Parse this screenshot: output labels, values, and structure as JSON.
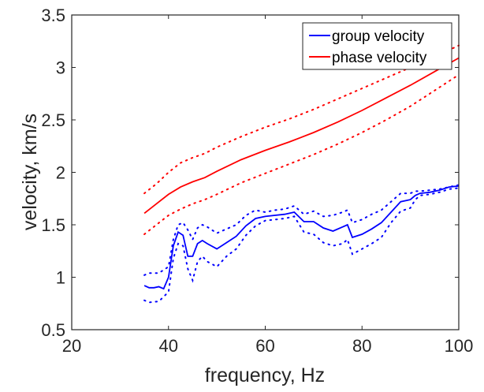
{
  "chart_data": {
    "type": "line",
    "xlabel": "frequency, Hz",
    "ylabel": "velocity, km/s",
    "xlim": [
      20,
      100
    ],
    "ylim": [
      0.5,
      3.5
    ],
    "xticks": [
      20,
      40,
      60,
      80,
      100
    ],
    "yticks": [
      0.5,
      1,
      1.5,
      2,
      2.5,
      3,
      3.5
    ],
    "xtick_labels": [
      "20",
      "40",
      "60",
      "80",
      "100"
    ],
    "ytick_labels": [
      "0.5",
      "1",
      "1.5",
      "2",
      "2.5",
      "3",
      "3.5"
    ],
    "grid": false,
    "legend_position": "top-right",
    "series": [
      {
        "name": "group velocity",
        "color": "#0000ff",
        "style": "solid",
        "x": [
          35,
          36,
          37,
          38,
          39,
          40,
          41,
          42,
          43,
          44,
          45,
          46,
          47,
          48,
          50,
          52,
          54,
          56,
          58,
          60,
          62,
          64,
          66,
          68,
          70,
          72,
          74,
          76,
          77,
          78,
          80,
          82,
          84,
          86,
          88,
          90,
          91,
          92,
          94,
          96,
          98,
          100
        ],
        "y": [
          0.92,
          0.9,
          0.9,
          0.91,
          0.89,
          1.0,
          1.3,
          1.43,
          1.4,
          1.2,
          1.2,
          1.32,
          1.35,
          1.32,
          1.27,
          1.33,
          1.39,
          1.49,
          1.56,
          1.58,
          1.59,
          1.6,
          1.62,
          1.53,
          1.53,
          1.47,
          1.44,
          1.48,
          1.5,
          1.38,
          1.41,
          1.46,
          1.52,
          1.62,
          1.72,
          1.74,
          1.78,
          1.8,
          1.81,
          1.83,
          1.86,
          1.87
        ]
      },
      {
        "name": "group velocity upper bound",
        "color": "#0000ff",
        "style": "dotted",
        "x": [
          35,
          36,
          38,
          40,
          41,
          42,
          43,
          44,
          45,
          46,
          47,
          48,
          50,
          52,
          54,
          56,
          58,
          60,
          62,
          64,
          66,
          68,
          70,
          72,
          74,
          76,
          77,
          78,
          80,
          82,
          84,
          86,
          88,
          90,
          91,
          92,
          94,
          96,
          98,
          100
        ],
        "y": [
          1.02,
          1.04,
          1.04,
          1.1,
          1.36,
          1.5,
          1.52,
          1.45,
          1.36,
          1.47,
          1.5,
          1.48,
          1.42,
          1.46,
          1.5,
          1.59,
          1.64,
          1.62,
          1.64,
          1.65,
          1.68,
          1.6,
          1.63,
          1.58,
          1.59,
          1.62,
          1.64,
          1.52,
          1.55,
          1.6,
          1.64,
          1.72,
          1.8,
          1.8,
          1.82,
          1.82,
          1.83,
          1.84,
          1.86,
          1.88
        ]
      },
      {
        "name": "group velocity lower bound",
        "color": "#0000ff",
        "style": "dotted",
        "x": [
          35,
          36,
          38,
          40,
          41,
          42,
          43,
          44,
          45,
          46,
          47,
          48,
          50,
          52,
          54,
          56,
          58,
          60,
          62,
          64,
          66,
          68,
          70,
          72,
          74,
          76,
          77,
          78,
          80,
          82,
          84,
          86,
          88,
          90,
          91,
          92,
          94,
          96,
          98,
          100
        ],
        "y": [
          0.78,
          0.76,
          0.77,
          0.86,
          1.18,
          1.32,
          1.3,
          1.08,
          0.97,
          1.15,
          1.2,
          1.15,
          1.1,
          1.2,
          1.27,
          1.4,
          1.49,
          1.54,
          1.55,
          1.56,
          1.58,
          1.43,
          1.41,
          1.33,
          1.3,
          1.32,
          1.36,
          1.22,
          1.27,
          1.32,
          1.38,
          1.52,
          1.63,
          1.66,
          1.74,
          1.78,
          1.79,
          1.81,
          1.84,
          1.85
        ]
      },
      {
        "name": "phase velocity",
        "color": "#ff0000",
        "style": "solid",
        "x": [
          35,
          37.5,
          40,
          42.5,
          45,
          47.5,
          50,
          55,
          60,
          65,
          70,
          75,
          80,
          85,
          90,
          95,
          100
        ],
        "y": [
          1.61,
          1.7,
          1.79,
          1.86,
          1.91,
          1.95,
          2.01,
          2.12,
          2.21,
          2.29,
          2.38,
          2.48,
          2.59,
          2.71,
          2.83,
          2.96,
          3.09
        ]
      },
      {
        "name": "phase velocity upper bound",
        "color": "#ff0000",
        "style": "dotted",
        "x": [
          35,
          37.5,
          40,
          42.5,
          45,
          47.5,
          50,
          55,
          60,
          65,
          70,
          75,
          80,
          85,
          90,
          95,
          100
        ],
        "y": [
          1.8,
          1.89,
          2.0,
          2.09,
          2.14,
          2.18,
          2.24,
          2.34,
          2.43,
          2.51,
          2.6,
          2.7,
          2.8,
          2.9,
          3.0,
          3.1,
          3.21
        ]
      },
      {
        "name": "phase velocity lower bound",
        "color": "#ff0000",
        "style": "dotted",
        "x": [
          35,
          37.5,
          40,
          42.5,
          45,
          47.5,
          50,
          55,
          60,
          65,
          70,
          75,
          80,
          85,
          90,
          95,
          100
        ],
        "y": [
          1.41,
          1.5,
          1.59,
          1.65,
          1.7,
          1.74,
          1.79,
          1.9,
          1.99,
          2.08,
          2.17,
          2.27,
          2.38,
          2.5,
          2.63,
          2.78,
          2.93
        ]
      }
    ],
    "legend": [
      {
        "label": "group velocity",
        "color": "#0000ff"
      },
      {
        "label": "phase velocity",
        "color": "#ff0000"
      }
    ]
  }
}
